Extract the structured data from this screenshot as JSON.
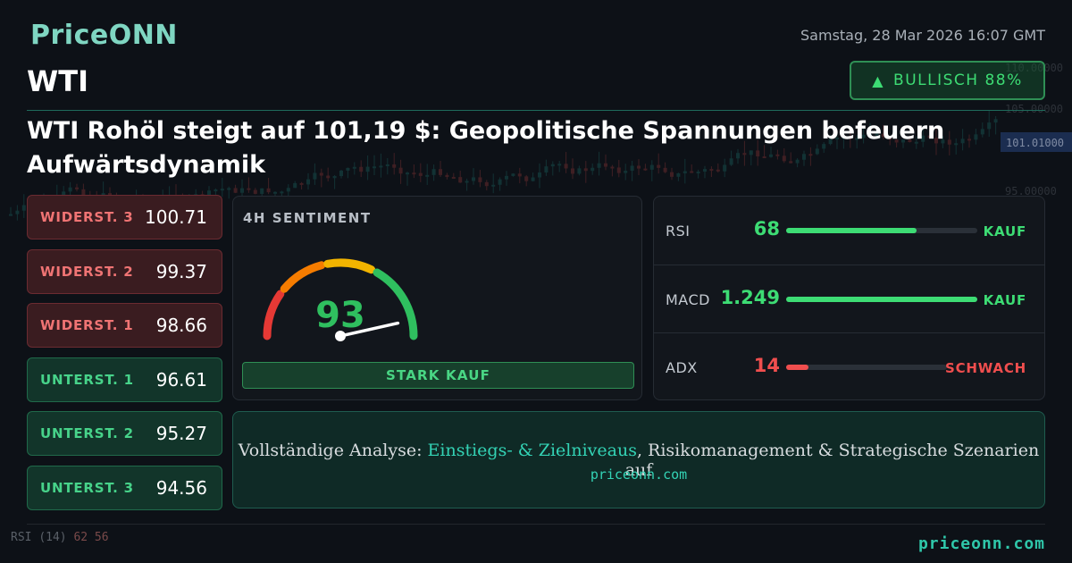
{
  "header": {
    "brand": "PriceONN",
    "symbol": "WTI",
    "timestamp": "Samstag, 28 Mar 2026 16:07 GMT",
    "sentiment_badge": "BULLISCH 88%"
  },
  "headline": "WTI Rohöl steigt auf 101,19 $: Geopolitische Spannungen befeuern Aufwärtsdynamik",
  "levels": [
    {
      "label": "WIDERST. 3",
      "value": "100.71",
      "kind": "resistance"
    },
    {
      "label": "WIDERST. 2",
      "value": "99.37",
      "kind": "resistance"
    },
    {
      "label": "WIDERST. 1",
      "value": "98.66",
      "kind": "resistance"
    },
    {
      "label": "UNTERST. 1",
      "value": "96.61",
      "kind": "support"
    },
    {
      "label": "UNTERST. 2",
      "value": "95.27",
      "kind": "support"
    },
    {
      "label": "UNTERST. 3",
      "value": "94.56",
      "kind": "support"
    }
  ],
  "gauge": {
    "title": "4H SENTIMENT",
    "score": "93",
    "score_value": 93,
    "verdict": "STARK KAUF"
  },
  "indicators": [
    {
      "name": "RSI",
      "value": "68",
      "level": 0.68,
      "signal": "KAUF",
      "tone": "green"
    },
    {
      "name": "MACD",
      "value": "1.249",
      "level": 1.0,
      "signal": "KAUF",
      "tone": "green"
    },
    {
      "name": "ADX",
      "value": "14",
      "level": 0.14,
      "signal": "SCHWACH",
      "tone": "red"
    }
  ],
  "cta": {
    "prefix": "Vollständige Analyse: ",
    "highlight": "Einstiegs- & Zielniveaus",
    "suffix": ", Risikomanagement & Strategische Szenarien auf",
    "url": "priceonn.com"
  },
  "background_chart": {
    "price_label": "101.01000",
    "axis_ticks": [
      "110.00000",
      "105.00000",
      "100.00000",
      "95.00000"
    ],
    "rsi_label": "RSI",
    "rsi_period": "(14)",
    "rsi_values": "62 56"
  },
  "footer": {
    "url": "priceonn.com"
  },
  "colors": {
    "background": "#0d1117",
    "accent": "#2fc7aa",
    "bullish": "#3ddc74",
    "bearish": "#f04e4e"
  }
}
